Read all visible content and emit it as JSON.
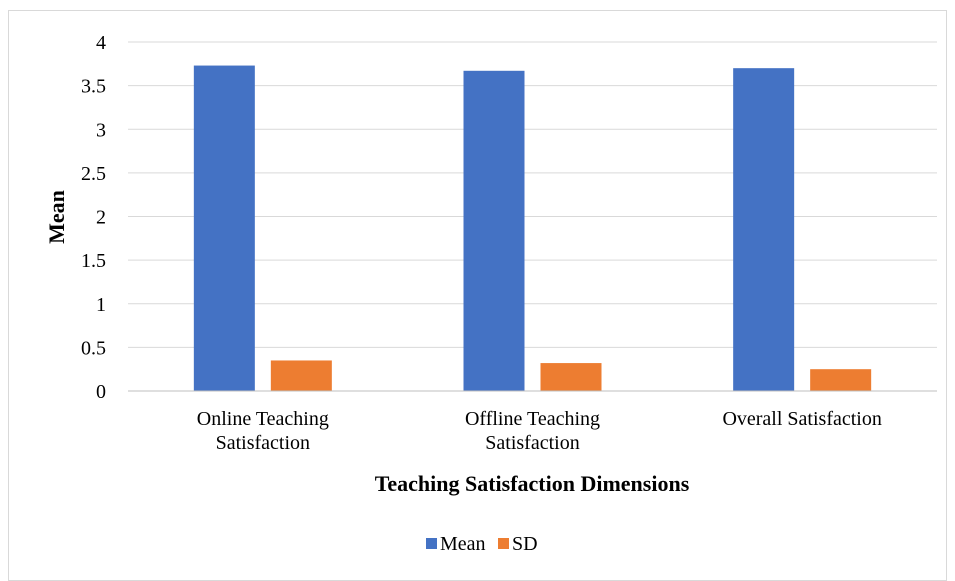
{
  "chart_data": {
    "type": "bar",
    "categories": [
      [
        "Online Teaching",
        "Satisfaction"
      ],
      [
        "Offline Teaching",
        "Satisfaction"
      ],
      [
        "Overall Satisfaction"
      ]
    ],
    "series": [
      {
        "name": "Mean",
        "values": [
          3.73,
          3.67,
          3.7
        ],
        "color": "#4472c4"
      },
      {
        "name": "SD",
        "values": [
          0.35,
          0.32,
          0.25
        ],
        "color": "#ed7d31"
      }
    ],
    "xlabel": "Teaching Satisfaction Dimensions",
    "ylabel": "Mean",
    "ylim": [
      0,
      4
    ],
    "yticks": [
      "0",
      "0.5",
      "1",
      "1.5",
      "2",
      "2.5",
      "3",
      "3.5",
      "4"
    ],
    "grid": true,
    "legend_position": "bottom"
  }
}
